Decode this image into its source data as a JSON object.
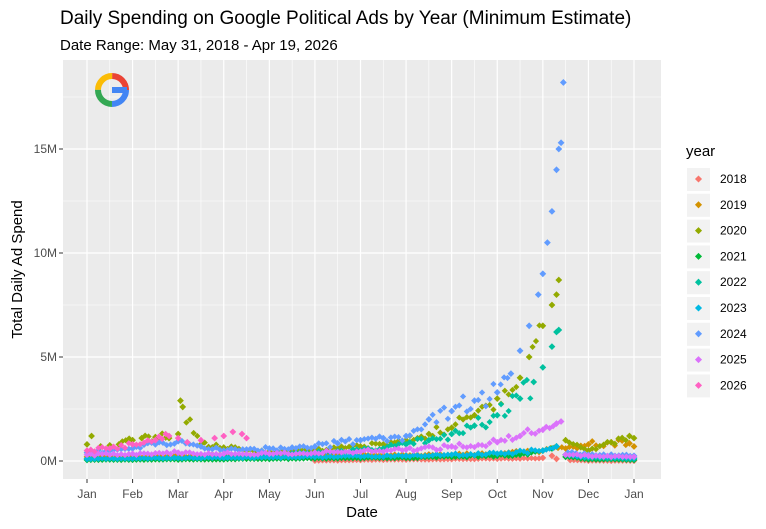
{
  "title": "Daily Spending on Google Political Ads by Year (Minimum Estimate)",
  "subtitle": "Date Range: May 31, 2018 - Apr 19, 2026",
  "logo": "google-logo",
  "colors": {
    "panel_bg": "#ebebeb",
    "grid": "#ffffff"
  },
  "chart_data": {
    "type": "scatter",
    "title": "Daily Spending on Google Political Ads by Year (Minimum Estimate)",
    "subtitle": "Date Range: May 31, 2018 - Apr 19, 2026",
    "xlabel": "Date",
    "ylabel": "Total Daily Ad Spend",
    "x_ticks": [
      "Jan",
      "Feb",
      "Mar",
      "Apr",
      "May",
      "Jun",
      "Jul",
      "Aug",
      "Sep",
      "Oct",
      "Nov",
      "Dec",
      "Jan"
    ],
    "y_ticks": [
      "0M",
      "5M",
      "10M",
      "15M"
    ],
    "y_tick_values": [
      0,
      5,
      10,
      15
    ],
    "ylim": [
      -0.6,
      19.2
    ],
    "y_unit": "M",
    "grid": true,
    "legend_title": "year",
    "legend_position": "right",
    "series": [
      {
        "name": "2018",
        "color": "#F8766D",
        "values": [
          [
            5.0,
            0.02
          ],
          [
            5.5,
            0.03
          ],
          [
            6.0,
            0.05
          ],
          [
            6.5,
            0.06
          ],
          [
            7.0,
            0.07
          ],
          [
            7.5,
            0.08
          ],
          [
            8.0,
            0.09
          ],
          [
            8.5,
            0.1
          ],
          [
            9.0,
            0.11
          ],
          [
            9.5,
            0.12
          ],
          [
            10.0,
            0.15
          ],
          [
            10.2,
            0.25
          ],
          [
            10.3,
            0.1
          ],
          [
            10.6,
            0.05
          ],
          [
            11.0,
            0.02
          ],
          [
            11.5,
            0.01
          ],
          [
            12.0,
            0.01
          ]
        ]
      },
      {
        "name": "2019",
        "color": "#D39200",
        "values": [
          [
            0.0,
            0.2
          ],
          [
            1.0,
            0.22
          ],
          [
            2.0,
            0.25
          ],
          [
            3.0,
            0.3
          ],
          [
            4.0,
            0.32
          ],
          [
            5.0,
            0.3
          ],
          [
            6.0,
            0.28
          ],
          [
            7.0,
            0.27
          ],
          [
            8.0,
            0.3
          ],
          [
            9.0,
            0.35
          ],
          [
            10.0,
            0.5
          ],
          [
            10.5,
            0.6
          ],
          [
            11.0,
            0.8
          ],
          [
            11.5,
            0.9
          ],
          [
            11.9,
            0.85
          ],
          [
            12.0,
            0.7
          ]
        ]
      },
      {
        "name": "2020",
        "color": "#93AA00",
        "values": [
          [
            0.0,
            0.8
          ],
          [
            0.1,
            1.2
          ],
          [
            0.3,
            0.7
          ],
          [
            0.5,
            0.75
          ],
          [
            0.7,
            0.8
          ],
          [
            1.0,
            1.0
          ],
          [
            1.2,
            1.1
          ],
          [
            1.5,
            1.15
          ],
          [
            1.8,
            1.1
          ],
          [
            2.0,
            1.3
          ],
          [
            2.05,
            2.9
          ],
          [
            2.1,
            2.6
          ],
          [
            2.5,
            0.8
          ],
          [
            3.0,
            0.65
          ],
          [
            3.5,
            0.5
          ],
          [
            4.0,
            0.45
          ],
          [
            4.5,
            0.5
          ],
          [
            5.0,
            0.55
          ],
          [
            5.5,
            0.6
          ],
          [
            6.0,
            0.7
          ],
          [
            6.5,
            0.8
          ],
          [
            7.0,
            1.0
          ],
          [
            7.5,
            1.3
          ],
          [
            8.0,
            1.6
          ],
          [
            8.5,
            2.2
          ],
          [
            9.0,
            3.0
          ],
          [
            9.5,
            4.0
          ],
          [
            9.7,
            5.0
          ],
          [
            10.0,
            6.5
          ],
          [
            10.2,
            7.5
          ],
          [
            10.3,
            8.0
          ],
          [
            10.35,
            8.7
          ],
          [
            10.5,
            1.0
          ],
          [
            11.0,
            0.5
          ],
          [
            11.5,
            0.9
          ],
          [
            11.9,
            1.2
          ],
          [
            12.0,
            1.1
          ]
        ]
      },
      {
        "name": "2021",
        "color": "#00BA38",
        "values": [
          [
            0.0,
            0.05
          ],
          [
            1.0,
            0.06
          ],
          [
            2.0,
            0.07
          ],
          [
            3.0,
            0.08
          ],
          [
            4.0,
            0.1
          ],
          [
            5.0,
            0.12
          ],
          [
            6.0,
            0.13
          ],
          [
            7.0,
            0.15
          ],
          [
            8.0,
            0.2
          ],
          [
            9.0,
            0.25
          ],
          [
            9.5,
            0.3
          ],
          [
            10.0,
            0.5
          ],
          [
            10.2,
            0.6
          ],
          [
            10.3,
            0.7
          ],
          [
            10.5,
            0.2
          ],
          [
            11.0,
            0.08
          ],
          [
            12.0,
            0.05
          ]
        ]
      },
      {
        "name": "2022",
        "color": "#00C19F",
        "values": [
          [
            0.0,
            0.1
          ],
          [
            1.0,
            0.12
          ],
          [
            2.0,
            0.15
          ],
          [
            3.0,
            0.2
          ],
          [
            4.0,
            0.3
          ],
          [
            5.0,
            0.4
          ],
          [
            6.0,
            0.5
          ],
          [
            6.5,
            0.6
          ],
          [
            7.0,
            0.8
          ],
          [
            7.5,
            1.0
          ],
          [
            8.0,
            1.3
          ],
          [
            8.5,
            1.7
          ],
          [
            9.0,
            2.2
          ],
          [
            9.5,
            3.0
          ],
          [
            9.8,
            3.8
          ],
          [
            10.0,
            4.5
          ],
          [
            10.2,
            5.5
          ],
          [
            10.3,
            6.2
          ],
          [
            10.35,
            6.3
          ],
          [
            10.5,
            0.3
          ],
          [
            11.0,
            0.15
          ],
          [
            12.0,
            0.1
          ]
        ]
      },
      {
        "name": "2023",
        "color": "#00B9E3",
        "values": [
          [
            0.0,
            0.1
          ],
          [
            1.0,
            0.12
          ],
          [
            2.0,
            0.15
          ],
          [
            3.0,
            0.15
          ],
          [
            4.0,
            0.18
          ],
          [
            5.0,
            0.2
          ],
          [
            6.0,
            0.22
          ],
          [
            7.0,
            0.25
          ],
          [
            8.0,
            0.3
          ],
          [
            9.0,
            0.35
          ],
          [
            10.0,
            0.5
          ],
          [
            10.3,
            0.7
          ],
          [
            10.5,
            0.3
          ],
          [
            11.0,
            0.2
          ],
          [
            12.0,
            0.15
          ]
        ]
      },
      {
        "name": "2024",
        "color": "#619CFF",
        "values": [
          [
            0.0,
            0.4
          ],
          [
            0.5,
            0.5
          ],
          [
            1.0,
            0.6
          ],
          [
            1.5,
            0.8
          ],
          [
            2.0,
            0.95
          ],
          [
            2.5,
            0.7
          ],
          [
            3.0,
            0.5
          ],
          [
            3.5,
            0.55
          ],
          [
            4.0,
            0.6
          ],
          [
            4.5,
            0.65
          ],
          [
            5.0,
            0.7
          ],
          [
            5.5,
            0.85
          ],
          [
            6.0,
            1.0
          ],
          [
            6.5,
            1.1
          ],
          [
            7.0,
            1.2
          ],
          [
            7.5,
            2.0
          ],
          [
            8.0,
            2.4
          ],
          [
            8.5,
            2.9
          ],
          [
            9.0,
            3.3
          ],
          [
            9.3,
            4.2
          ],
          [
            9.5,
            5.3
          ],
          [
            9.7,
            6.5
          ],
          [
            9.9,
            8.0
          ],
          [
            10.0,
            9.0
          ],
          [
            10.1,
            10.5
          ],
          [
            10.2,
            12.0
          ],
          [
            10.3,
            14.0
          ],
          [
            10.35,
            15.0
          ],
          [
            10.4,
            15.3
          ],
          [
            10.45,
            18.2
          ],
          [
            10.55,
            0.4
          ],
          [
            11.0,
            0.3
          ],
          [
            12.0,
            0.25
          ]
        ]
      },
      {
        "name": "2025",
        "color": "#DB72FB",
        "values": [
          [
            0.0,
            0.3
          ],
          [
            1.0,
            0.35
          ],
          [
            2.0,
            0.4
          ],
          [
            3.0,
            0.35
          ],
          [
            4.0,
            0.35
          ],
          [
            5.0,
            0.4
          ],
          [
            6.0,
            0.45
          ],
          [
            7.0,
            0.55
          ],
          [
            8.0,
            0.7
          ],
          [
            9.0,
            0.9
          ],
          [
            9.5,
            1.2
          ],
          [
            10.0,
            1.5
          ],
          [
            10.3,
            1.8
          ],
          [
            10.4,
            1.9
          ],
          [
            10.5,
            0.3
          ],
          [
            11.0,
            0.25
          ],
          [
            12.0,
            0.2
          ]
        ]
      },
      {
        "name": "2026",
        "color": "#FF61C3",
        "values": [
          [
            0.0,
            0.5
          ],
          [
            0.5,
            0.6
          ],
          [
            1.0,
            0.8
          ],
          [
            1.5,
            1.0
          ],
          [
            1.8,
            1.2
          ],
          [
            2.0,
            1.1
          ],
          [
            2.2,
            0.9
          ],
          [
            2.5,
            1.0
          ],
          [
            2.8,
            1.1
          ],
          [
            3.0,
            1.2
          ],
          [
            3.2,
            1.4
          ],
          [
            3.4,
            1.3
          ],
          [
            3.5,
            1.1
          ]
        ]
      }
    ]
  }
}
